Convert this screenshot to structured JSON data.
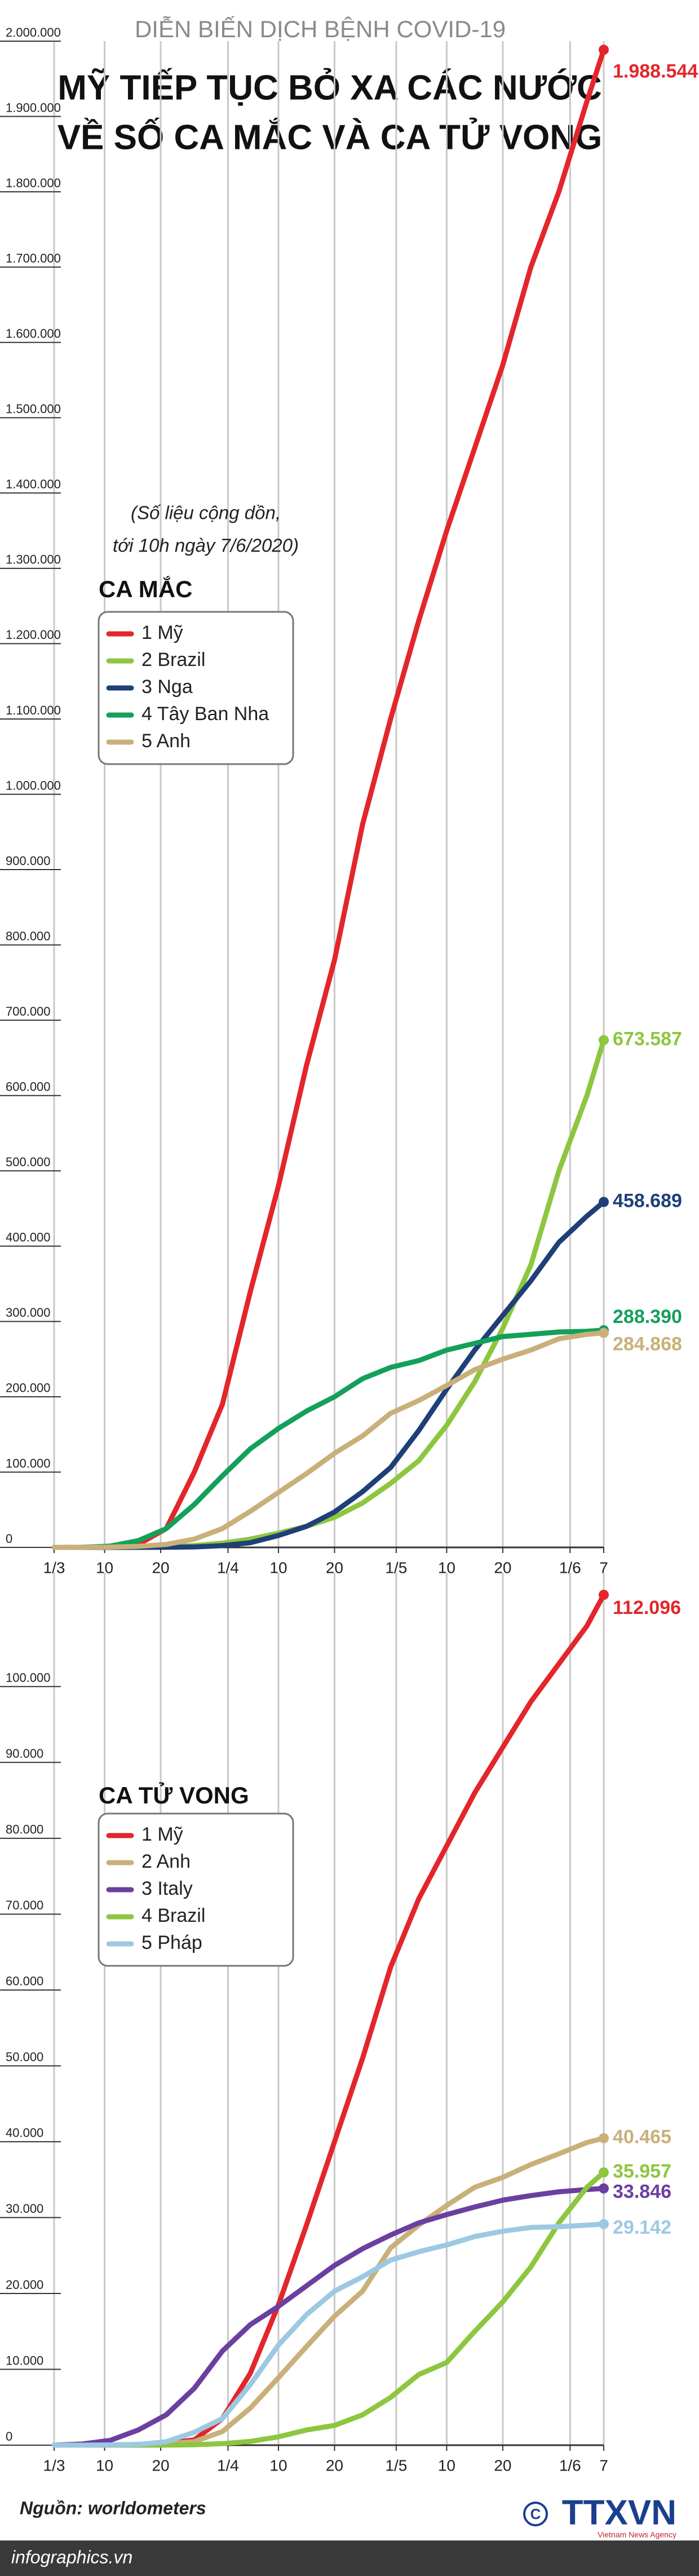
{
  "header": {
    "kicker": "DIỄN BIẾN DỊCH BỆNH COVID-19",
    "title": [
      "MỸ TIẾP TỤC BỎ XA CÁC NƯỚC",
      "VỀ SỐ CA MẮC VÀ CA TỬ VONG"
    ]
  },
  "chart_data": [
    {
      "type": "line",
      "title": "CA MẮC",
      "note": [
        "(Số liệu cộng dồn,",
        "tới 10h ngày 7/6/2020)"
      ],
      "x": [
        0,
        5,
        10,
        15,
        20,
        25,
        30,
        35,
        40,
        45,
        50,
        55,
        60,
        65,
        70,
        75,
        80,
        85,
        90,
        95,
        98
      ],
      "xlim": [
        0,
        98
      ],
      "xticks": [
        {
          "value": 0,
          "label": "1/3"
        },
        {
          "value": 9,
          "label": "10"
        },
        {
          "value": 19,
          "label": "20"
        },
        {
          "value": 31,
          "label": "1/4"
        },
        {
          "value": 40,
          "label": "10"
        },
        {
          "value": 50,
          "label": "20"
        },
        {
          "value": 61,
          "label": "1/5"
        },
        {
          "value": 70,
          "label": "10"
        },
        {
          "value": 80,
          "label": "20"
        },
        {
          "value": 92,
          "label": "1/6"
        },
        {
          "value": 98,
          "label": "7"
        }
      ],
      "ylim": [
        0,
        2000000
      ],
      "yticks": [
        0,
        {
          "value": 100000,
          "label": "100.000"
        },
        {
          "value": 200000,
          "label": "200.000"
        },
        {
          "value": 300000,
          "label": "300.000"
        },
        {
          "value": 400000,
          "label": "400.000"
        },
        {
          "value": 500000,
          "label": "500.000"
        },
        {
          "value": 600000,
          "label": "600.000"
        },
        {
          "value": 700000,
          "label": "700.000"
        },
        {
          "value": 800000,
          "label": "800.000"
        },
        {
          "value": 900000,
          "label": "900.000"
        },
        {
          "value": 1000000,
          "label": "1.000.000"
        },
        {
          "value": 1100000,
          "label": "1.100.000"
        },
        {
          "value": 1200000,
          "label": "1.200.000"
        },
        {
          "value": 1300000,
          "label": "1.300.000"
        },
        {
          "value": 1400000,
          "label": "1.400.000"
        },
        {
          "value": 1500000,
          "label": "1.500.000"
        },
        {
          "value": 1600000,
          "label": "1.600.000"
        },
        {
          "value": 1700000,
          "label": "1.700.000"
        },
        {
          "value": 1800000,
          "label": "1.800.000"
        },
        {
          "value": 1900000,
          "label": "1.900.000"
        },
        {
          "value": 2000000,
          "label": "2.000.000"
        }
      ],
      "grid": "x",
      "legend": "upper left",
      "series": [
        {
          "name": "1 Mỹ",
          "color": "#e3262b",
          "values": [
            0,
            0,
            1000,
            4000,
            25000,
            100000,
            190000,
            340000,
            480000,
            640000,
            780000,
            960000,
            1100000,
            1230000,
            1350000,
            1460000,
            1570000,
            1700000,
            1800000,
            1920000,
            1988544
          ],
          "value_labels": [
            null,
            null,
            null,
            null,
            null,
            null,
            null,
            null,
            null,
            null,
            null,
            null,
            null,
            null,
            null,
            null,
            null,
            null,
            null,
            null,
            "1.988.544"
          ]
        },
        {
          "name": "2 Brazil",
          "color": "#8dc63f",
          "values": [
            0,
            0,
            25,
            200,
            1000,
            2500,
            5700,
            11000,
            19000,
            28000,
            40000,
            59000,
            85000,
            115000,
            162000,
            220000,
            291000,
            375000,
            500000,
            600000,
            673587
          ],
          "value_labels": [
            null,
            null,
            null,
            null,
            null,
            null,
            null,
            null,
            null,
            null,
            null,
            null,
            null,
            null,
            null,
            null,
            null,
            null,
            null,
            null,
            "673.587"
          ]
        },
        {
          "name": "3 Nga",
          "color": "#1f3f78",
          "values": [
            0,
            0,
            10,
            60,
            250,
            660,
            2300,
            6300,
            15800,
            27900,
            47000,
            74000,
            106000,
            155000,
            210000,
            262000,
            308000,
            354000,
            405000,
            440000,
            458689
          ],
          "value_labels": [
            null,
            null,
            null,
            null,
            null,
            null,
            null,
            null,
            null,
            null,
            null,
            null,
            null,
            null,
            null,
            null,
            null,
            null,
            null,
            null,
            "458.689"
          ]
        },
        {
          "name": "4 Tây Ban Nha",
          "color": "#14a05a",
          "values": [
            0,
            200,
            1700,
            9000,
            25000,
            57000,
            95000,
            131000,
            158000,
            181000,
            200000,
            224000,
            239000,
            248000,
            262000,
            271000,
            280000,
            283000,
            286000,
            287000,
            288390
          ],
          "value_labels": [
            null,
            null,
            null,
            null,
            null,
            null,
            null,
            null,
            null,
            null,
            null,
            null,
            null,
            null,
            null,
            null,
            null,
            null,
            null,
            null,
            "288.390"
          ]
        },
        {
          "name": "5 Anh",
          "color": "#c9b07a",
          "values": [
            0,
            50,
            400,
            1400,
            4000,
            11000,
            25000,
            48000,
            73000,
            98000,
            125000,
            148000,
            178000,
            195000,
            215000,
            236000,
            250000,
            262000,
            277000,
            283000,
            284868
          ],
          "value_labels": [
            null,
            null,
            null,
            null,
            null,
            null,
            null,
            null,
            null,
            null,
            null,
            null,
            null,
            null,
            null,
            null,
            null,
            null,
            null,
            null,
            "284.868"
          ]
        }
      ]
    },
    {
      "type": "line",
      "title": "CA TỬ VONG",
      "x": [
        0,
        5,
        10,
        15,
        20,
        25,
        30,
        35,
        40,
        45,
        50,
        55,
        60,
        65,
        70,
        75,
        80,
        85,
        90,
        95,
        98
      ],
      "xlim": [
        0,
        98
      ],
      "xticks": [
        {
          "value": 0,
          "label": "1/3"
        },
        {
          "value": 9,
          "label": "10"
        },
        {
          "value": 19,
          "label": "20"
        },
        {
          "value": 31,
          "label": "1/4"
        },
        {
          "value": 40,
          "label": "10"
        },
        {
          "value": 50,
          "label": "20"
        },
        {
          "value": 61,
          "label": "1/5"
        },
        {
          "value": 70,
          "label": "10"
        },
        {
          "value": 80,
          "label": "20"
        },
        {
          "value": 92,
          "label": "1/6"
        },
        {
          "value": 98,
          "label": "7"
        }
      ],
      "ylim": [
        0,
        115000
      ],
      "yticks": [
        0,
        {
          "value": 10000,
          "label": "10.000"
        },
        {
          "value": 20000,
          "label": "20.000"
        },
        {
          "value": 30000,
          "label": "30.000"
        },
        {
          "value": 40000,
          "label": "40.000"
        },
        {
          "value": 50000,
          "label": "50.000"
        },
        {
          "value": 60000,
          "label": "60.000"
        },
        {
          "value": 70000,
          "label": "70.000"
        },
        {
          "value": 80000,
          "label": "80.000"
        },
        {
          "value": 90000,
          "label": "90.000"
        },
        {
          "value": 100000,
          "label": "100.000"
        }
      ],
      "grid": "x",
      "legend": "upper left",
      "series": [
        {
          "name": "1 Mỹ",
          "color": "#e3262b",
          "values": [
            0,
            0,
            30,
            100,
            250,
            700,
            3500,
            9500,
            18500,
            29000,
            40000,
            51000,
            63000,
            72000,
            79000,
            86000,
            92000,
            98000,
            103000,
            108000,
            112096
          ],
          "value_labels": [
            null,
            null,
            null,
            null,
            null,
            null,
            null,
            null,
            null,
            null,
            null,
            null,
            null,
            null,
            null,
            null,
            null,
            null,
            null,
            null,
            "112.096"
          ]
        },
        {
          "name": "2 Anh",
          "color": "#c9b07a",
          "values": [
            0,
            0,
            10,
            50,
            180,
            470,
            1800,
            4900,
            8900,
            13000,
            17000,
            20300,
            26000,
            29000,
            31600,
            34000,
            35300,
            37000,
            38400,
            39900,
            40465
          ],
          "value_labels": [
            null,
            null,
            null,
            null,
            null,
            null,
            null,
            null,
            null,
            null,
            null,
            null,
            null,
            null,
            null,
            null,
            null,
            null,
            null,
            null,
            "40.465"
          ]
        },
        {
          "name": "3 Italy",
          "color": "#6b3fa0",
          "values": [
            0,
            150,
            630,
            2000,
            4000,
            7500,
            12400,
            15900,
            18300,
            21000,
            23700,
            25900,
            27700,
            29300,
            30400,
            31400,
            32300,
            32900,
            33400,
            33700,
            33846
          ],
          "value_labels": [
            null,
            null,
            null,
            null,
            null,
            null,
            null,
            null,
            null,
            null,
            null,
            null,
            null,
            null,
            null,
            null,
            null,
            null,
            null,
            null,
            "33.846"
          ]
        },
        {
          "name": "4 Brazil",
          "color": "#8dc63f",
          "values": [
            0,
            0,
            0,
            0,
            10,
            60,
            200,
            500,
            1100,
            2000,
            2600,
            4000,
            6300,
            9300,
            10900,
            15000,
            18900,
            23500,
            29300,
            34000,
            35957
          ],
          "value_labels": [
            null,
            null,
            null,
            null,
            null,
            null,
            null,
            null,
            null,
            null,
            null,
            null,
            null,
            null,
            null,
            null,
            null,
            null,
            null,
            null,
            "35.957"
          ]
        },
        {
          "name": "5 Pháp",
          "color": "#9cc9e2",
          "values": [
            0,
            0,
            30,
            90,
            450,
            1700,
            3500,
            8000,
            13200,
            17200,
            20300,
            22200,
            24400,
            25500,
            26400,
            27500,
            28200,
            28700,
            28800,
            29000,
            29142
          ],
          "value_labels": [
            null,
            null,
            null,
            null,
            null,
            null,
            null,
            null,
            null,
            null,
            null,
            null,
            null,
            null,
            null,
            null,
            null,
            null,
            null,
            null,
            "29.142"
          ]
        }
      ]
    }
  ],
  "footer": {
    "source": "Nguồn: worldometers",
    "site": "infographics.vn",
    "logo": "TTXVN",
    "agency": "Vietnam News Agency"
  }
}
